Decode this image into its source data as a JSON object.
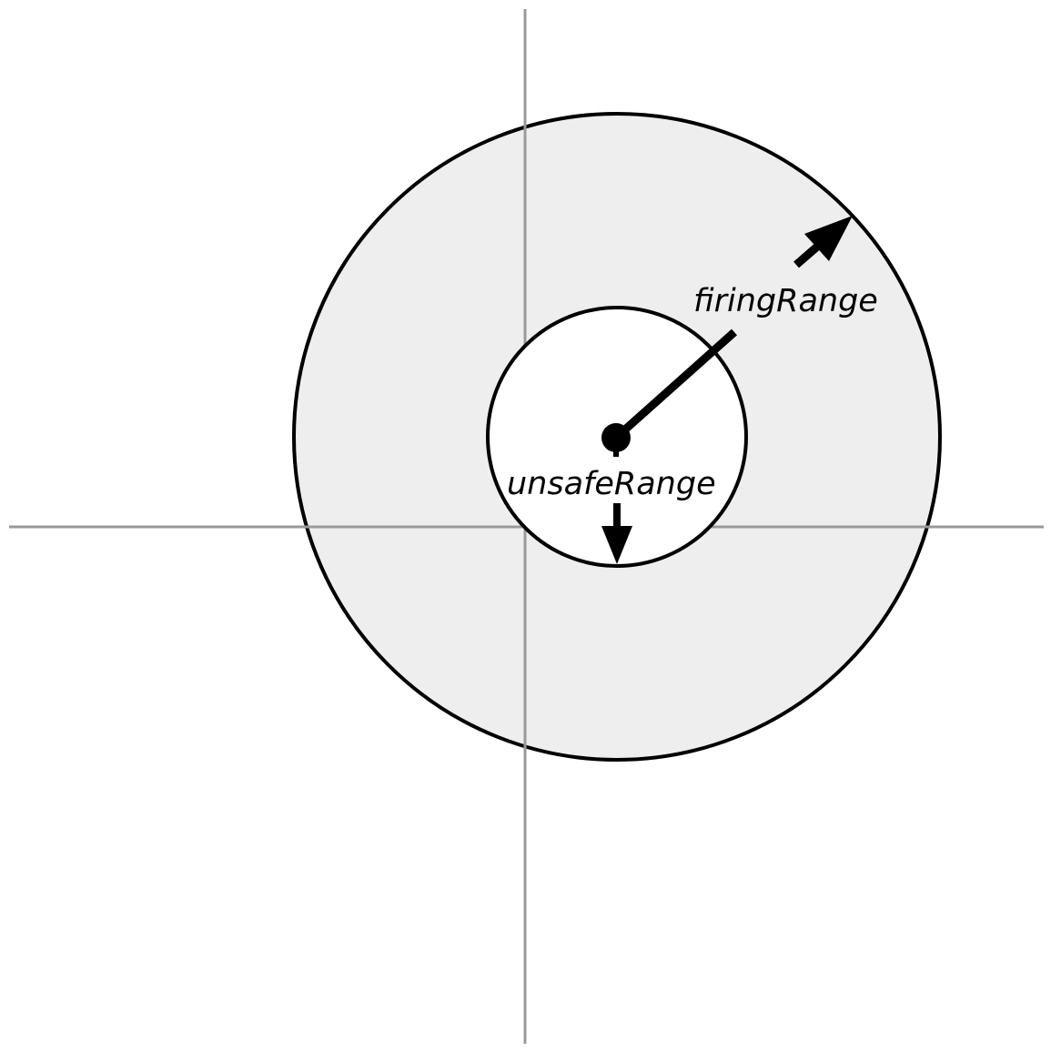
{
  "labels": {
    "firing_range": "firingRange",
    "unsafe_range": "unsafeRange"
  },
  "colors": {
    "axis": "#999999",
    "outer_fill": "#eeeeee",
    "inner_fill": "#ffffff",
    "stroke": "#000000"
  }
}
